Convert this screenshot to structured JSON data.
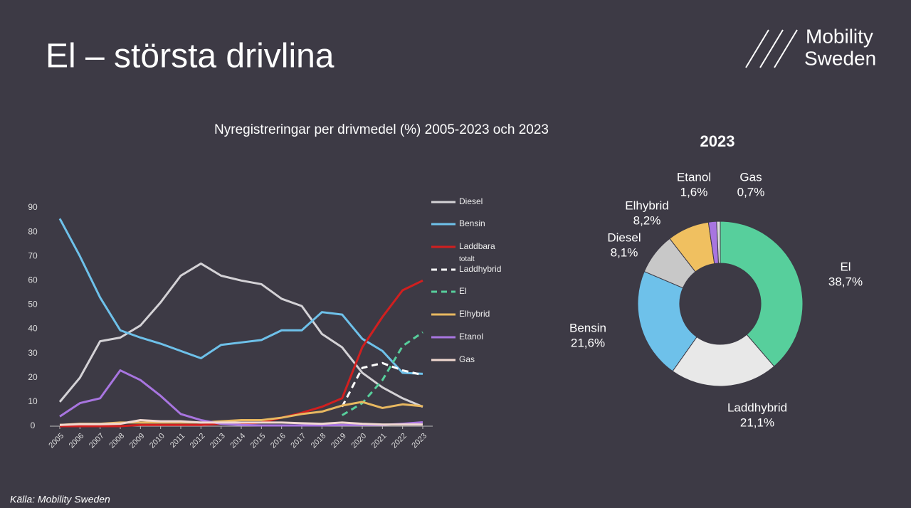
{
  "header": {
    "title": "El – största drivlina",
    "logo": [
      "Mobility",
      "Sweden"
    ]
  },
  "source": "Källa: Mobility Sweden",
  "chart_data": [
    {
      "type": "line",
      "title": "Nyregistreringar per drivmedel (%) 2005-2023 och 2023",
      "categories": [
        "2005",
        "2006",
        "2007",
        "2008",
        "2009",
        "2010",
        "2011",
        "2012",
        "2013",
        "2014",
        "2015",
        "2016",
        "2017",
        "2018",
        "2019",
        "2020",
        "2021",
        "2022",
        "2023"
      ],
      "ylim": [
        0,
        90
      ],
      "yticks": [
        0,
        10,
        20,
        30,
        40,
        50,
        60,
        70,
        80,
        90
      ],
      "series": [
        {
          "name": "Diesel",
          "color": "#d4d2d6",
          "values": [
            10,
            20,
            35,
            36.5,
            41.5,
            51,
            62,
            67,
            62,
            60,
            58.5,
            52.5,
            49.5,
            38,
            32.5,
            22,
            16,
            11.5,
            8
          ]
        },
        {
          "name": "Bensin",
          "color": "#6ec1ea",
          "values": [
            85.5,
            70,
            53,
            39.5,
            36.5,
            34,
            31,
            28,
            33.5,
            34.5,
            35.5,
            39.5,
            39.5,
            47,
            46,
            36,
            31,
            22,
            21.6
          ]
        },
        {
          "name": "Laddbara totalt",
          "color": "#d11f1f",
          "values": [
            0,
            0,
            0,
            0,
            0.5,
            0.5,
            0.5,
            0.5,
            1,
            1,
            1.5,
            3.5,
            5.5,
            8,
            11.5,
            32.5,
            45,
            56,
            60
          ]
        },
        {
          "name": "Laddhybrid",
          "color": "#ffffff",
          "dashed": true,
          "values": [
            null,
            null,
            null,
            null,
            null,
            null,
            null,
            null,
            null,
            null,
            null,
            null,
            null,
            null,
            8,
            24,
            26,
            23,
            21.1
          ]
        },
        {
          "name": "El",
          "color": "#57cf9c",
          "dashed": true,
          "values": [
            null,
            null,
            null,
            null,
            null,
            null,
            null,
            null,
            null,
            null,
            null,
            null,
            null,
            null,
            4.5,
            9.5,
            19,
            33,
            38.7
          ]
        },
        {
          "name": "Elhybrid",
          "color": "#e8b860",
          "values": [
            0.5,
            1,
            1,
            1.5,
            1.5,
            1.5,
            1.5,
            1.5,
            2,
            2.5,
            2.5,
            3.5,
            5,
            6,
            8.5,
            10,
            7.5,
            9,
            8.2
          ]
        },
        {
          "name": "Etanol",
          "color": "#a875e0",
          "values": [
            4,
            9.5,
            11.5,
            23,
            19,
            12.5,
            5,
            2.5,
            1,
            0.5,
            0.3,
            0.3,
            0.3,
            0.3,
            0.5,
            0.5,
            0.5,
            1,
            1.6
          ]
        },
        {
          "name": "Gas",
          "color": "#f0d8d0",
          "values": [
            0.5,
            0.8,
            0.8,
            1,
            2.5,
            2,
            2,
            1.5,
            1.5,
            1.5,
            1.5,
            1.5,
            1.2,
            1,
            1.5,
            1,
            0.7,
            0.7,
            0.7
          ]
        }
      ]
    },
    {
      "type": "pie",
      "title": "2023",
      "donut": true,
      "categories": [
        "El",
        "Laddhybrid",
        "Bensin",
        "Diesel",
        "Elhybrid",
        "Etanol",
        "Gas"
      ],
      "values": [
        38.7,
        21.1,
        21.6,
        8.1,
        8.2,
        1.6,
        0.7
      ],
      "value_labels": [
        "38,7%",
        "21,1%",
        "21,6%",
        "8,1%",
        "8,2%",
        "1,6%",
        "0,7%"
      ],
      "colors": [
        "#57cf9c",
        "#e8e8e8",
        "#6ec1ea",
        "#c8c8c8",
        "#f0c060",
        "#a875e0",
        "#dddddd"
      ]
    }
  ]
}
